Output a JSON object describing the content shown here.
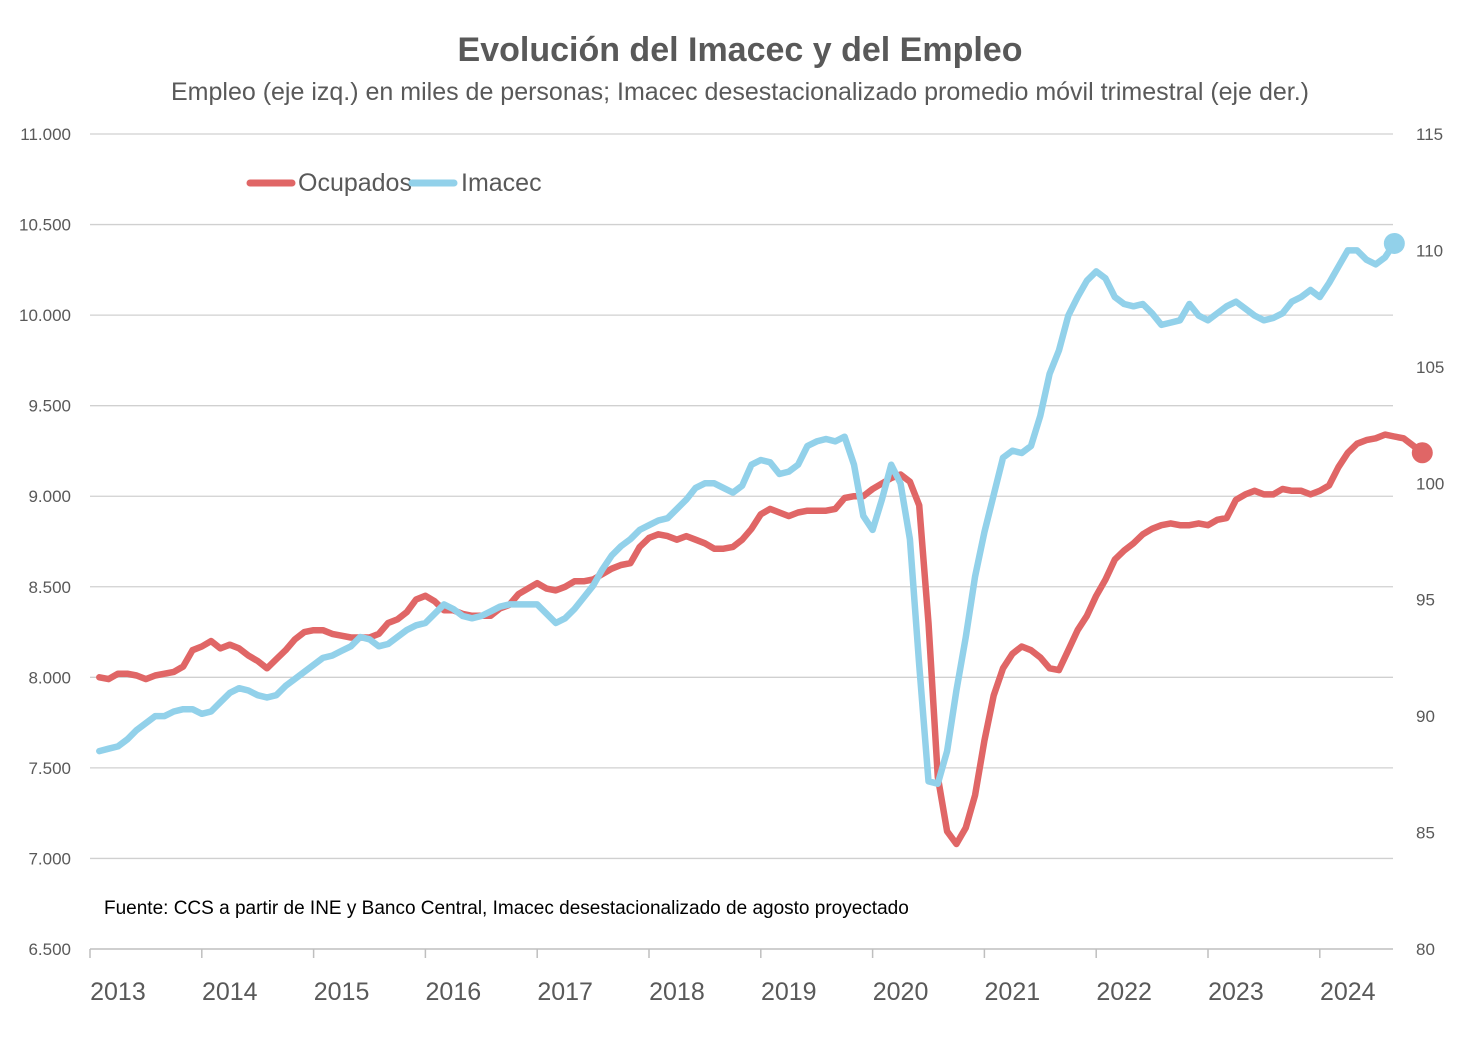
{
  "chart_data": {
    "type": "line",
    "title": "Evolución del Imacec y del Empleo",
    "subtitle": "Empleo (eje izq.) en miles de personas; Imacec desestacionalizado promedio móvil trimestral  (eje der.)",
    "note": "Fuente: CCS a partir de INE y Banco Central, Imacec desestacionalizado de agosto proyectado",
    "x_ticks": [
      "2013",
      "2014",
      "2015",
      "2016",
      "2017",
      "2018",
      "2019",
      "2020",
      "2021",
      "2022",
      "2023",
      "2024"
    ],
    "x_range": [
      "2013-01",
      "2024-08"
    ],
    "y_left": {
      "ticks": [
        "6.500",
        "7.000",
        "7.500",
        "8.000",
        "8.500",
        "9.000",
        "9.500",
        "10.000",
        "10.500",
        "11.000"
      ],
      "ylim": [
        6500,
        11000
      ]
    },
    "y_right": {
      "ticks": [
        "80",
        "85",
        "90",
        "95",
        "100",
        "105",
        "110",
        "115"
      ],
      "ylim": [
        80,
        115
      ]
    },
    "grid": true,
    "legend_position": "top-left",
    "series": [
      {
        "name": "Ocupados",
        "axis": "left",
        "color": "#E06666",
        "start": "2013-02",
        "values": [
          8000,
          7990,
          8020,
          8020,
          8010,
          7990,
          8010,
          8020,
          8030,
          8060,
          8150,
          8170,
          8200,
          8160,
          8180,
          8160,
          8120,
          8090,
          8050,
          8100,
          8150,
          8210,
          8250,
          8260,
          8260,
          8240,
          8230,
          8220,
          8220,
          8220,
          8240,
          8300,
          8320,
          8360,
          8430,
          8450,
          8420,
          8370,
          8370,
          8350,
          8340,
          8340,
          8340,
          8380,
          8400,
          8460,
          8490,
          8520,
          8490,
          8480,
          8500,
          8530,
          8530,
          8540,
          8570,
          8600,
          8620,
          8630,
          8720,
          8770,
          8790,
          8780,
          8760,
          8780,
          8760,
          8740,
          8710,
          8710,
          8720,
          8760,
          8820,
          8900,
          8930,
          8910,
          8890,
          8910,
          8920,
          8920,
          8920,
          8930,
          8990,
          9000,
          9000,
          9040,
          9070,
          9100,
          9120,
          9080,
          8950,
          8300,
          7450,
          7150,
          7080,
          7170,
          7350,
          7650,
          7900,
          8050,
          8130,
          8170,
          8150,
          8110,
          8050,
          8040,
          8150,
          8260,
          8340,
          8450,
          8540,
          8650,
          8700,
          8740,
          8790,
          8820,
          8840,
          8850,
          8840,
          8840,
          8850,
          8840,
          8870,
          8880,
          8980,
          9010,
          9030,
          9010,
          9010,
          9040,
          9030,
          9030,
          9010,
          9030,
          9060,
          9160,
          9240,
          9290,
          9310,
          9320,
          9340,
          9330,
          9320,
          9280,
          9240
        ]
      },
      {
        "name": "Imacec",
        "axis": "right",
        "color": "#92D1EA",
        "start": "2013-02",
        "values": [
          88.5,
          88.6,
          88.7,
          89.0,
          89.4,
          89.7,
          90.0,
          90.0,
          90.2,
          90.3,
          90.3,
          90.1,
          90.2,
          90.6,
          91.0,
          91.2,
          91.1,
          90.9,
          90.8,
          90.9,
          91.3,
          91.6,
          91.9,
          92.2,
          92.5,
          92.6,
          92.8,
          93.0,
          93.4,
          93.3,
          93.0,
          93.1,
          93.4,
          93.7,
          93.9,
          94.0,
          94.4,
          94.8,
          94.6,
          94.3,
          94.2,
          94.3,
          94.5,
          94.7,
          94.8,
          94.8,
          94.8,
          94.8,
          94.4,
          94.0,
          94.2,
          94.6,
          95.1,
          95.6,
          96.3,
          96.9,
          97.3,
          97.6,
          98.0,
          98.2,
          98.4,
          98.5,
          98.9,
          99.3,
          99.8,
          100.0,
          100.0,
          99.8,
          99.6,
          99.9,
          100.8,
          101.0,
          100.9,
          100.4,
          100.5,
          100.8,
          101.6,
          101.8,
          101.9,
          101.8,
          102.0,
          100.8,
          98.6,
          98.0,
          99.3,
          100.8,
          100.0,
          97.6,
          92.2,
          87.2,
          87.1,
          88.5,
          91.1,
          93.4,
          96.0,
          97.9,
          99.5,
          101.1,
          101.4,
          101.3,
          101.6,
          102.9,
          104.7,
          105.7,
          107.2,
          108.0,
          108.7,
          109.1,
          108.8,
          108.0,
          107.7,
          107.6,
          107.7,
          107.3,
          106.8,
          106.9,
          107.0,
          107.7,
          107.2,
          107.0,
          107.3,
          107.6,
          107.8,
          107.5,
          107.2,
          107.0,
          107.1,
          107.3,
          107.8,
          108.0,
          108.3,
          108.0,
          108.6,
          109.3,
          110.0,
          110.0,
          109.6,
          109.4,
          109.7,
          110.3
        ]
      }
    ]
  }
}
